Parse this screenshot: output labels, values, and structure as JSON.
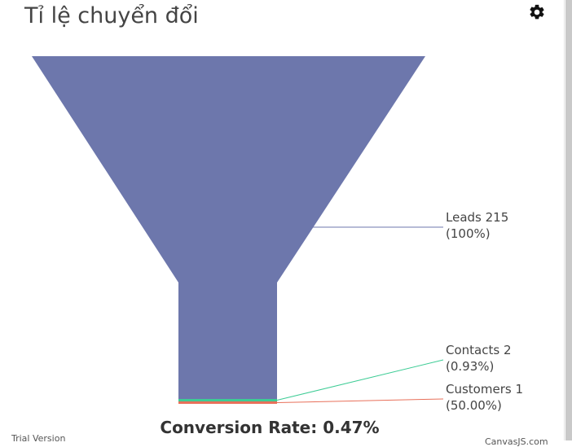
{
  "header": {
    "title": "Tỉ lệ chuyển đổi",
    "settings_icon": "gear-icon"
  },
  "chart_data": {
    "type": "funnel",
    "title": "Tỉ lệ chuyển đổi",
    "stages": [
      {
        "label": "Leads",
        "value": 215,
        "percent_label": "(100%)",
        "color": "#6d77ac"
      },
      {
        "label": "Contacts",
        "value": 2,
        "percent_label": "(0.93%)",
        "color": "#3dcc95"
      },
      {
        "label": "Customers",
        "value": 1,
        "percent_label": "(50.00%)",
        "color": "#e8705a"
      }
    ],
    "conversion_text": "Conversion Rate: 0.47%"
  },
  "footer": {
    "trial_text": "Trial Version",
    "credit_text": "CanvasJS.com"
  }
}
